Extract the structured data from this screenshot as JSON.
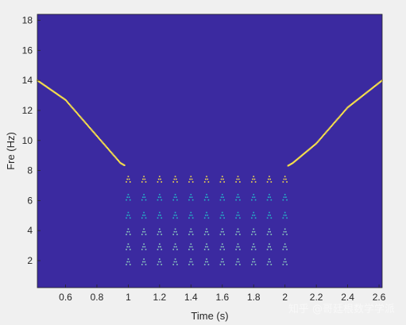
{
  "chart_data": {
    "type": "heatmap",
    "title": "",
    "xlabel": "Time (s)",
    "ylabel": "Fre (Hz)",
    "xlim": [
      0.42,
      2.62
    ],
    "ylim": [
      0.2,
      18.4
    ],
    "xticks": [
      0.6,
      0.8,
      1,
      1.2,
      1.4,
      1.6,
      1.8,
      2,
      2.2,
      2.4,
      2.6
    ],
    "xtick_labels": [
      "0.6",
      "0.8",
      "1",
      "1.2",
      "1.4",
      "1.6",
      "1.8",
      "2",
      "2.2",
      "2.4",
      "2.6"
    ],
    "yticks": [
      2,
      4,
      6,
      8,
      10,
      12,
      14,
      16,
      18
    ],
    "ytick_labels": [
      "2",
      "4",
      "6",
      "8",
      "10",
      "12",
      "14",
      "16",
      "18"
    ],
    "colors": {
      "background": "#3b2aa0",
      "ridge": "#f7e04a",
      "mid": "#25b8c8",
      "faint": "#8fd0c0"
    },
    "ridge": {
      "description_points": [
        {
          "t": 0.42,
          "f": 14.0
        },
        {
          "t": 0.6,
          "f": 12.7
        },
        {
          "t": 0.8,
          "f": 10.3
        },
        {
          "t": 0.95,
          "f": 8.5
        },
        {
          "t": 1.0,
          "f": 8.2
        },
        {
          "t": 2.0,
          "f": 8.2
        },
        {
          "t": 2.05,
          "f": 8.5
        },
        {
          "t": 2.2,
          "f": 9.8
        },
        {
          "t": 2.4,
          "f": 12.2
        },
        {
          "t": 2.62,
          "f": 14.0
        }
      ]
    },
    "harmonics": {
      "t_start": 1.0,
      "t_end": 2.0,
      "period": 0.1,
      "peak_frequencies": [
        7.6,
        6.4,
        5.2,
        4.1,
        3.1,
        2.1
      ]
    }
  },
  "watermark": "知乎 @哥廷根数学学派"
}
